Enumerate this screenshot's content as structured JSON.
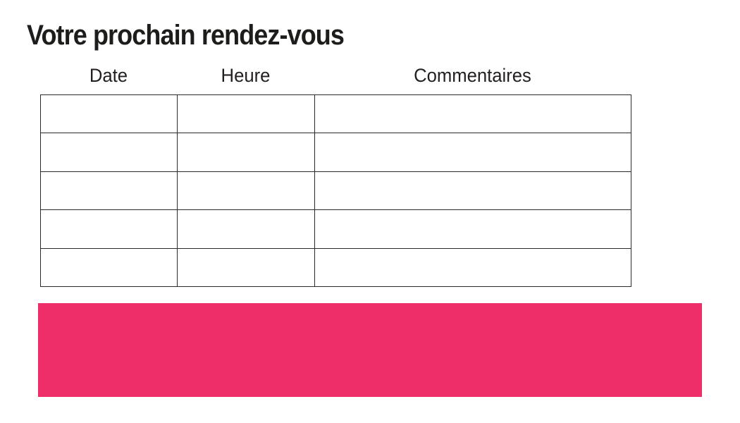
{
  "page": {
    "title": "Votre prochain rendez-vous",
    "background_color": "#ffffff",
    "text_color": "#1d1d1b",
    "table_border_color": "#2b2b2b"
  },
  "table": {
    "columns": [
      {
        "label": "Date"
      },
      {
        "label": "Heure"
      },
      {
        "label": "Commentaires"
      }
    ],
    "rows": [
      {
        "date": "",
        "heure": "",
        "commentaires": ""
      },
      {
        "date": "",
        "heure": "",
        "commentaires": ""
      },
      {
        "date": "",
        "heure": "",
        "commentaires": ""
      },
      {
        "date": "",
        "heure": "",
        "commentaires": ""
      },
      {
        "date": "",
        "heure": "",
        "commentaires": ""
      }
    ]
  },
  "banner": {
    "text": "",
    "color": "#ED2E68"
  }
}
